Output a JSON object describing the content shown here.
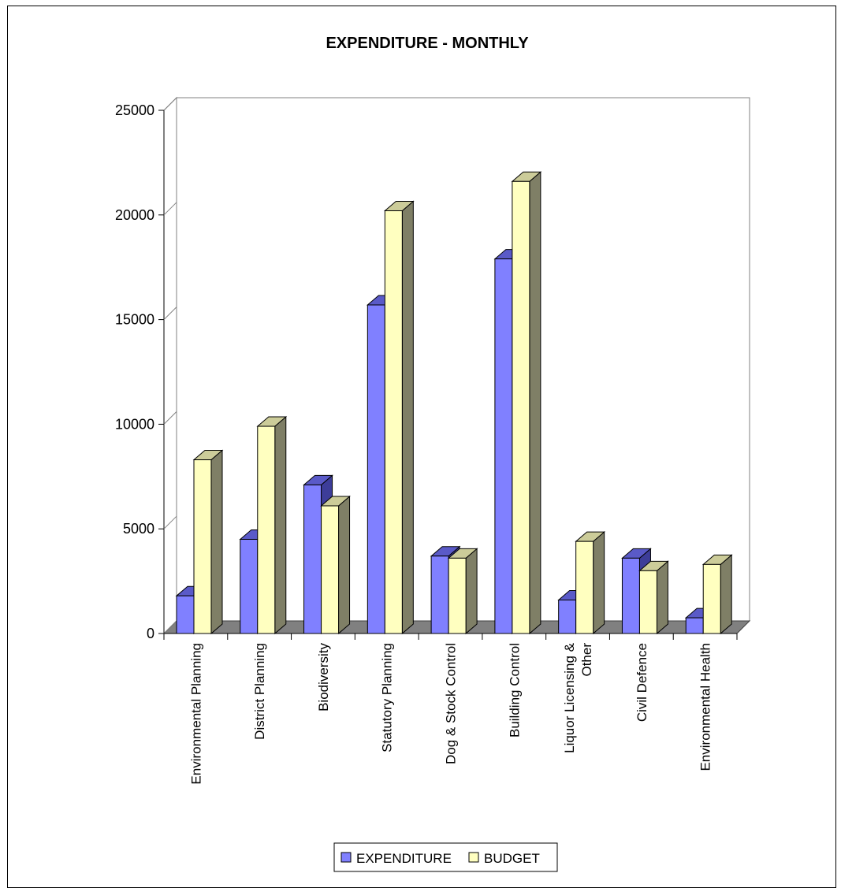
{
  "chart_data": {
    "type": "bar",
    "title": "EXPENDITURE - MONTHLY",
    "xlabel": "",
    "ylabel": "",
    "ylim": [
      0,
      25000
    ],
    "yticks": [
      "0",
      "5000",
      "10000",
      "15000",
      "20000",
      "25000"
    ],
    "categories": [
      [
        "Environmental Planning"
      ],
      [
        "District Planning"
      ],
      [
        "Biodiversity"
      ],
      [
        "Statutory Planning"
      ],
      [
        "Dog & Stock Control"
      ],
      [
        "Building Control"
      ],
      [
        "Liquor Licensing &",
        "Other"
      ],
      [
        "Civil Defence"
      ],
      [
        "Environmental Health"
      ]
    ],
    "series": [
      {
        "name": "EXPENDITURE",
        "values": [
          1800,
          4500,
          7100,
          15700,
          3700,
          17900,
          1600,
          3600,
          750
        ]
      },
      {
        "name": "BUDGET",
        "values": [
          8300,
          9900,
          6100,
          20200,
          3600,
          21600,
          4400,
          3000,
          3300
        ]
      }
    ],
    "colors": {
      "expenditure": "#8080ff",
      "expenditure_dark": "#3d3d99",
      "expenditure_top": "#5a5ac8",
      "budget": "#ffffc0",
      "budget_dark": "#7f7f66",
      "budget_top": "#cccc99",
      "floor": "#808080"
    },
    "legend": {
      "position": "bottom",
      "items": [
        "EXPENDITURE",
        "BUDGET"
      ]
    },
    "grid": false
  }
}
